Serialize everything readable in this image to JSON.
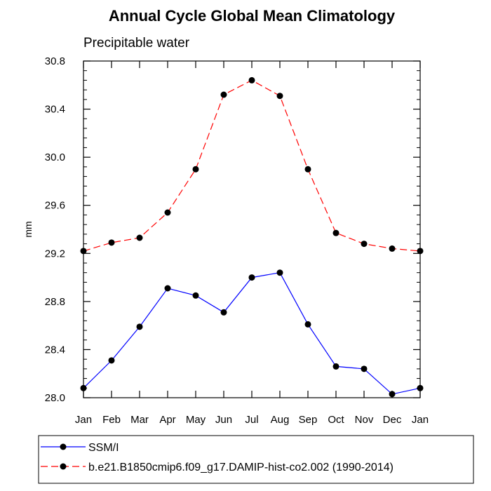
{
  "chart_data": {
    "type": "line",
    "title": "Annual Cycle Global Mean Climatology",
    "subtitle": "Precipitable water",
    "ylabel": "mm",
    "xlabel": "",
    "ylim": [
      28.0,
      30.8
    ],
    "yticks": [
      "28.0",
      "28.4",
      "28.8",
      "29.2",
      "29.6",
      "30.0",
      "30.4",
      "30.8"
    ],
    "categories": [
      "Jan",
      "Feb",
      "Mar",
      "Apr",
      "May",
      "Jun",
      "Jul",
      "Aug",
      "Sep",
      "Oct",
      "Nov",
      "Dec",
      "Jan"
    ],
    "grid": false,
    "legend_position": "bottom",
    "series": [
      {
        "name": "SSM/I",
        "color": "#0000ff",
        "dash": "solid",
        "values": [
          28.08,
          28.31,
          28.59,
          28.91,
          28.85,
          28.71,
          29.0,
          29.04,
          28.61,
          28.26,
          28.24,
          28.03,
          28.08
        ]
      },
      {
        "name": "b.e21.B1850cmip6.f09_g17.DAMIP-hist-co2.002 (1990-2014)",
        "color": "#ff0000",
        "dash": "dashed",
        "values": [
          29.22,
          29.29,
          29.33,
          29.54,
          29.9,
          30.52,
          30.64,
          30.51,
          29.9,
          29.37,
          29.28,
          29.24,
          29.22
        ]
      }
    ]
  }
}
